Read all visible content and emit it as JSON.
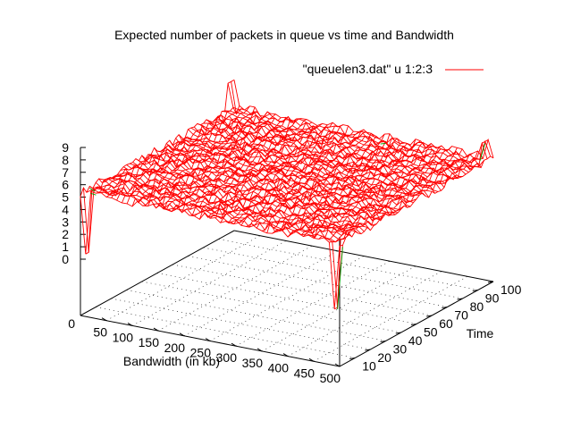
{
  "chart_data": {
    "type": "surface",
    "title": "Expected number of packets in queue vs time and Bandwidth",
    "xlabel": "Bandwidth (in kb)",
    "ylabel": "Time",
    "zlabel": "",
    "legend": {
      "entry": "\"queuelen3.dat\" u 1:2:3",
      "color": "#ff0000",
      "placement": "top-right"
    },
    "xlim": [
      0,
      500
    ],
    "ylim": [
      0,
      100
    ],
    "zlim": [
      0,
      9
    ],
    "x_ticks": [
      "0",
      "50",
      "100",
      "150",
      "200",
      "250",
      "300",
      "350",
      "400",
      "450",
      "500"
    ],
    "y_ticks": [
      "10",
      "20",
      "30",
      "40",
      "50",
      "60",
      "70",
      "80",
      "90",
      "100"
    ],
    "z_ticks": [
      "0",
      "1",
      "2",
      "3",
      "4",
      "5",
      "6",
      "7",
      "8",
      "9"
    ],
    "grid": true,
    "colors": {
      "surface": "#ff0000",
      "underside": "#00a000",
      "axis": "#000000"
    },
    "surface": {
      "base_level": 5.4,
      "spikes": [
        {
          "bandwidth": 490,
          "time": 0,
          "value": 0
        },
        {
          "bandwidth": 10,
          "time": 0,
          "value": 0.5
        },
        {
          "bandwidth": 490,
          "time": 98,
          "value": 6.8
        },
        {
          "bandwidth": 0,
          "time": 98,
          "value": 7.6
        }
      ]
    }
  }
}
